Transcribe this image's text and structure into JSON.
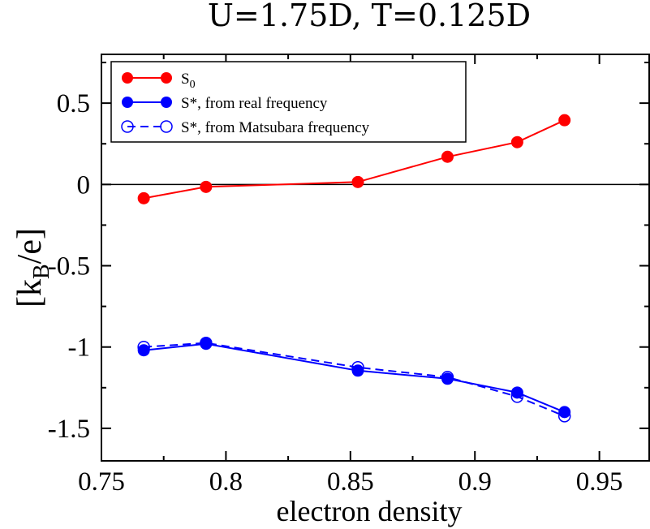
{
  "chart_data": {
    "type": "line",
    "title": "U=1.75D, T=0.125D",
    "xlabel": "electron density",
    "ylabel": "[k_B/e]",
    "ylabel_parts": {
      "open": "[k",
      "sub": "B",
      "close": "/e]"
    },
    "xlim": [
      0.75,
      0.97
    ],
    "ylim": [
      -1.7,
      0.8
    ],
    "xticks": [
      0.75,
      0.8,
      0.85,
      0.9,
      0.95
    ],
    "xtick_labels": [
      "0.75",
      "0.8",
      "0.85",
      "0.9",
      "0.95"
    ],
    "yticks": [
      -1.5,
      -1,
      -0.5,
      0,
      0.5
    ],
    "ytick_labels": [
      "-1.5",
      "-1",
      "-0.5",
      "0",
      "0.5"
    ],
    "zero_line": true,
    "grid": false,
    "legend_position": "top-left",
    "series": [
      {
        "name": "S0",
        "legend_parts": {
          "main": "S",
          "sub": "0",
          "rest": ""
        },
        "color": "#ff0000",
        "marker": "filled-circle",
        "linestyle": "solid",
        "x": [
          0.767,
          0.792,
          0.853,
          0.889,
          0.917,
          0.936
        ],
        "y": [
          -0.085,
          -0.015,
          0.015,
          0.17,
          0.26,
          0.395
        ]
      },
      {
        "name": "S*, from real frequency",
        "legend_parts": {
          "main": "S*",
          "sub": "",
          "rest": ", from real frequency"
        },
        "color": "#0000ff",
        "marker": "filled-circle",
        "linestyle": "solid",
        "x": [
          0.767,
          0.792,
          0.853,
          0.889,
          0.917,
          0.936
        ],
        "y": [
          -1.02,
          -0.98,
          -1.145,
          -1.195,
          -1.28,
          -1.4
        ]
      },
      {
        "name": "S*, from Matsubara frequency",
        "legend_parts": {
          "main": "S*",
          "sub": "",
          "rest": ", from Matsubara frequency"
        },
        "color": "#0000ff",
        "marker": "open-circle",
        "linestyle": "dashed",
        "x": [
          0.767,
          0.792,
          0.853,
          0.889,
          0.917,
          0.936
        ],
        "y": [
          -1.0,
          -0.975,
          -1.125,
          -1.185,
          -1.305,
          -1.425
        ]
      }
    ]
  }
}
